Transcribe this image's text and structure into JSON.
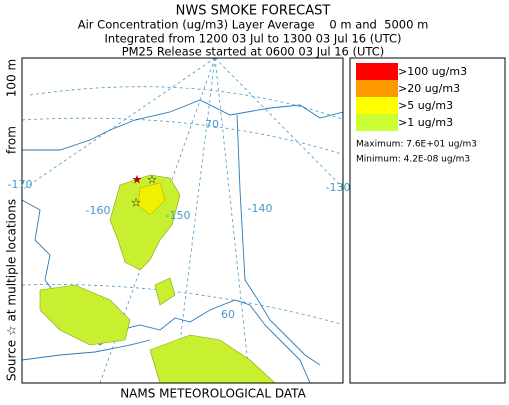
{
  "header": {
    "title": "NWS SMOKE FORECAST",
    "lines": [
      "Air Concentration (ug/m3) Layer Average    0 m and  5000 m",
      "Integrated from 1200 03 Jul to 1300 03 Jul 16 (UTC)",
      "PM25 Release started at 0600 03 Jul 16 (UTC)"
    ]
  },
  "side_label": [
    "Source ☆ at multiple locations",
    "from",
    "100 m"
  ],
  "footer": "NAMS METEOROLOGICAL DATA",
  "legend": {
    "items": [
      {
        "label": ">100 ug/m3",
        "color": "#ff0000"
      },
      {
        "label": ">20 ug/m3",
        "color": "#ff9900"
      },
      {
        "label": ">5 ug/m3",
        "color": "#ffff00"
      },
      {
        "label": ">1 ug/m3",
        "color": "#ccff33"
      }
    ],
    "maximum": "Maximum: 7.6E+01 ug/m3",
    "minimum": "Minimum: 4.2E-08 ug/m3"
  },
  "map": {
    "grid_labels": [
      "-170",
      "-160",
      "-150",
      "-140",
      "-130",
      "70",
      "60"
    ]
  }
}
